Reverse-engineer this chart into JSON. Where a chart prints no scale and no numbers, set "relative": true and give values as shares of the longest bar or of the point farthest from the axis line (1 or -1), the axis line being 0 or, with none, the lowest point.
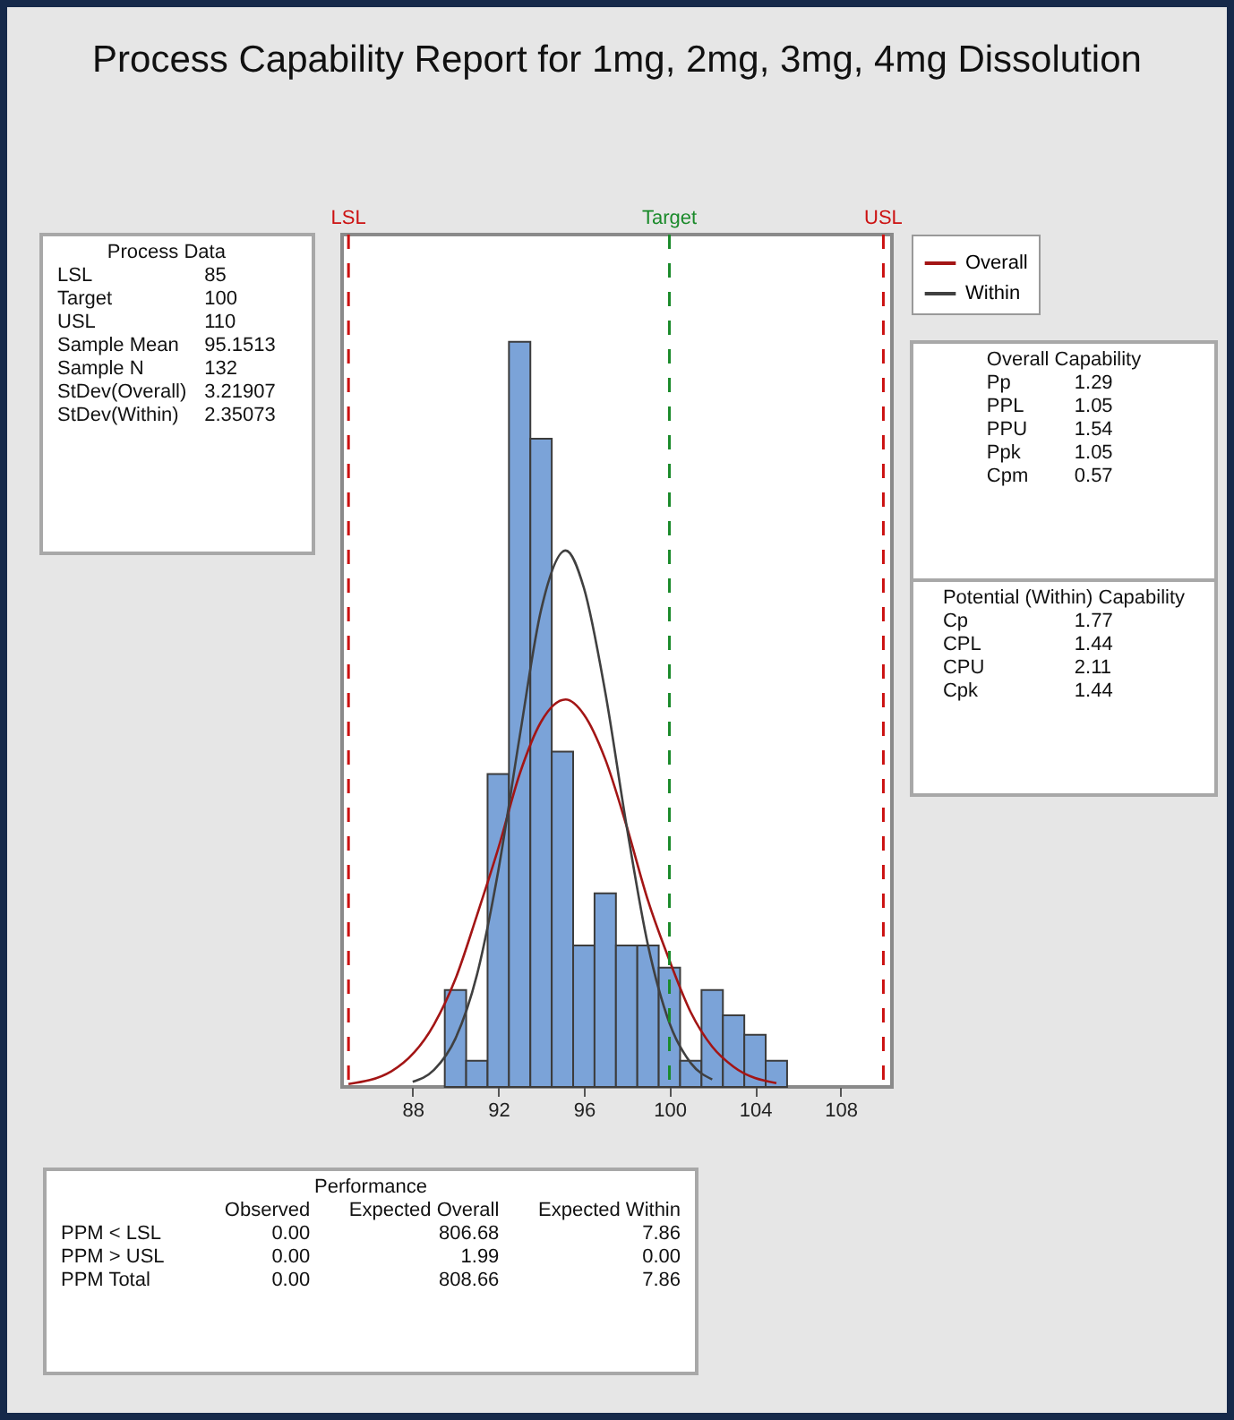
{
  "chart_data": [
    {
      "type": "histogram",
      "title": "Process Capability Report for 1mg, 2mg, 3mg, 4mg Dissolution",
      "relative": true,
      "color": "#7ba3d8",
      "bins": [
        89.5,
        90.5,
        91.5,
        92.5,
        93.5,
        94.5,
        95.5,
        96.5,
        97.5,
        98.5,
        99.5,
        100.5,
        101.5,
        102.5,
        103.5,
        104.5,
        105.5
      ],
      "values": [
        0.13,
        0.035,
        0.42,
        1,
        0.87,
        0.45,
        0.19,
        0.26,
        0.19,
        0.19,
        0.16,
        0.035,
        0.13,
        0.096,
        0.07,
        0.035
      ],
      "xlim": [
        84.7,
        110.4
      ],
      "xticks": [
        88,
        92,
        96,
        100,
        104,
        108
      ],
      "series": [
        {
          "name": "Overall",
          "type": "line",
          "color": "#a31515",
          "x": [
            85,
            87,
            89,
            90,
            91,
            92,
            93,
            94,
            95.15,
            96,
            97,
            98,
            99,
            100,
            101,
            102,
            103,
            105
          ],
          "values": [
            0.004,
            0.021,
            0.084,
            0.145,
            0.23,
            0.32,
            0.42,
            0.49,
            0.52,
            0.5,
            0.44,
            0.35,
            0.25,
            0.17,
            0.1,
            0.054,
            0.027,
            0.005
          ]
        },
        {
          "name": "Within",
          "type": "line",
          "color": "#404040",
          "x": [
            88,
            89,
            90,
            91,
            92,
            93,
            94,
            95.15,
            96,
            97,
            98,
            99,
            100,
            101,
            102
          ],
          "values": [
            0.007,
            0.023,
            0.065,
            0.15,
            0.29,
            0.47,
            0.64,
            0.72,
            0.67,
            0.53,
            0.35,
            0.19,
            0.086,
            0.032,
            0.01
          ]
        }
      ],
      "ref_lines": [
        {
          "axis": "x",
          "value": 85,
          "label": "LSL",
          "color": "#cc1111",
          "line_style": "dashed"
        },
        {
          "axis": "x",
          "value": 100,
          "label": "Target",
          "color": "#1a8a2a",
          "line_style": "dashed"
        },
        {
          "axis": "x",
          "value": 110,
          "label": "USL",
          "color": "#cc1111",
          "line_style": "dashed"
        }
      ],
      "legend": "top right"
    },
    {
      "type": "other",
      "annotations": [
        "Process Data",
        "LSL",
        "85",
        "Target",
        "100",
        "USL",
        "110",
        "Sample Mean",
        "95.1513",
        "Sample N",
        "132",
        "StDev(Overall)",
        "3.21907",
        "StDev(Within)",
        "2.35073"
      ]
    },
    {
      "type": "other",
      "annotations": [
        "Overall Capability",
        "Pp",
        "1.29",
        "PPL",
        "1.05",
        "PPU",
        "1.54",
        "Ppk",
        "1.05",
        "Cpm",
        "0.57"
      ]
    },
    {
      "type": "other",
      "annotations": [
        "Potential (Within) Capability",
        "Cp",
        "1.77",
        "CPL",
        "1.44",
        "CPU",
        "2.11",
        "Cpk",
        "1.44"
      ]
    },
    {
      "type": "other",
      "annotations": [
        "Performance",
        "Observed",
        "Expected Overall",
        "Expected Within",
        "PPM < LSL",
        "0.00",
        "806.68",
        "7.86",
        "PPM > USL",
        "0.00",
        "1.99",
        "0.00",
        "PPM Total",
        "0.00",
        "808.66",
        "7.86"
      ]
    }
  ]
}
